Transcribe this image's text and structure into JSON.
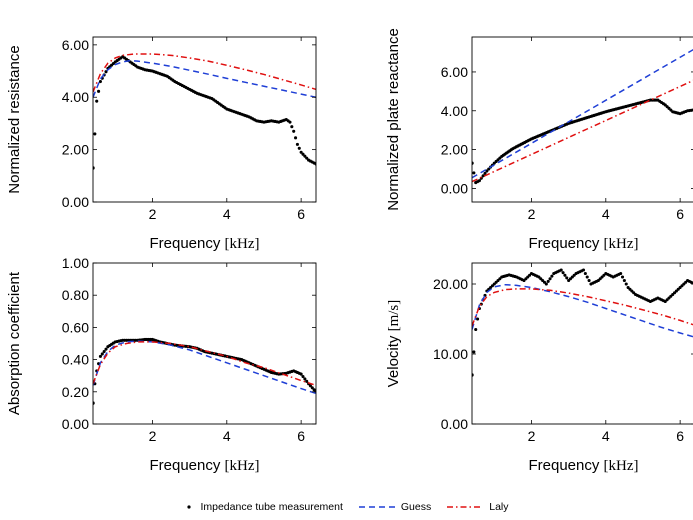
{
  "colors": {
    "measurement": "#000000",
    "guess": "#1f3fd6",
    "laly": "#e01010"
  },
  "legend": {
    "measurement": "Impedance tube measurement",
    "guess": "Guess",
    "laly": "Laly"
  },
  "chart_data": [
    {
      "type": "line",
      "xlabel": "Frequency [kHz]",
      "ylabel": "Normalized resistance",
      "xlim": [
        0.4,
        6.4
      ],
      "ylim": [
        0,
        6.3
      ],
      "xticks": [
        2,
        4,
        6
      ],
      "xtick_labels": [
        "2",
        "4",
        "6"
      ],
      "yticks": [
        0,
        2,
        4,
        6
      ],
      "ytick_labels": [
        "0.00",
        "2.00",
        "4.00",
        "6.00"
      ],
      "grid": false,
      "series": [
        {
          "name": "Impedance tube measurement",
          "style": "dots",
          "x": [
            0.4,
            0.45,
            0.5,
            0.6,
            0.8,
            1.0,
            1.2,
            1.4,
            1.6,
            1.8,
            2.0,
            2.2,
            2.4,
            2.6,
            2.8,
            3.0,
            3.2,
            3.4,
            3.6,
            3.8,
            4.0,
            4.2,
            4.4,
            4.6,
            4.8,
            5.0,
            5.2,
            5.4,
            5.6,
            5.7,
            5.8,
            5.9,
            6.0,
            6.2,
            6.4
          ],
          "y": [
            1.3,
            2.6,
            3.85,
            4.6,
            5.1,
            5.35,
            5.55,
            5.35,
            5.15,
            5.05,
            5.0,
            4.9,
            4.8,
            4.6,
            4.45,
            4.3,
            4.15,
            4.05,
            3.95,
            3.75,
            3.55,
            3.45,
            3.35,
            3.25,
            3.1,
            3.05,
            3.1,
            3.05,
            3.15,
            3.05,
            2.7,
            2.2,
            1.9,
            1.6,
            1.45
          ]
        },
        {
          "name": "Guess",
          "style": "dashed",
          "x": [
            0.4,
            0.6,
            0.8,
            1.0,
            1.2,
            1.4,
            1.6,
            2.0,
            2.5,
            3.0,
            3.5,
            4.0,
            4.5,
            5.0,
            5.5,
            6.0,
            6.4
          ],
          "y": [
            4.0,
            4.7,
            5.05,
            5.25,
            5.35,
            5.4,
            5.38,
            5.3,
            5.18,
            5.03,
            4.88,
            4.72,
            4.57,
            4.42,
            4.27,
            4.12,
            4.0
          ]
        },
        {
          "name": "Laly",
          "style": "dashdot",
          "x": [
            0.4,
            0.6,
            0.8,
            1.0,
            1.2,
            1.5,
            2.0,
            2.5,
            3.0,
            3.5,
            4.0,
            4.5,
            5.0,
            5.5,
            6.0,
            6.4
          ],
          "y": [
            4.2,
            4.9,
            5.3,
            5.5,
            5.6,
            5.65,
            5.65,
            5.6,
            5.5,
            5.38,
            5.22,
            5.05,
            4.87,
            4.67,
            4.47,
            4.3
          ]
        }
      ]
    },
    {
      "type": "line",
      "xlabel": "Frequency [kHz]",
      "ylabel": "Normalized plate reactance",
      "xlim": [
        0.4,
        6.4
      ],
      "ylim": [
        -0.7,
        7.8
      ],
      "xticks": [
        2,
        4,
        6
      ],
      "xtick_labels": [
        "2",
        "4",
        "6"
      ],
      "yticks": [
        0,
        2,
        4,
        6
      ],
      "ytick_labels": [
        "0.00",
        "2.00",
        "4.00",
        "6.00"
      ],
      "grid": false,
      "series": [
        {
          "name": "Impedance tube measurement",
          "style": "dots",
          "x": [
            0.4,
            0.5,
            0.6,
            0.8,
            1.0,
            1.2,
            1.5,
            2.0,
            2.5,
            3.0,
            3.5,
            4.0,
            4.5,
            5.0,
            5.2,
            5.4,
            5.6,
            5.8,
            6.0,
            6.2,
            6.4
          ],
          "y": [
            1.3,
            0.3,
            0.4,
            0.9,
            1.3,
            1.65,
            2.05,
            2.55,
            2.95,
            3.35,
            3.65,
            3.95,
            4.2,
            4.45,
            4.55,
            4.55,
            4.3,
            3.95,
            3.85,
            4.0,
            4.05
          ]
        },
        {
          "name": "Guess",
          "style": "dashed",
          "x": [
            0.4,
            6.4
          ],
          "y": [
            0.55,
            7.2
          ]
        },
        {
          "name": "Laly",
          "style": "dashdot",
          "x": [
            0.4,
            6.4
          ],
          "y": [
            0.35,
            5.6
          ]
        }
      ]
    },
    {
      "type": "line",
      "xlabel": "Frequency [kHz]",
      "ylabel": "Absorption coefficient",
      "xlim": [
        0.4,
        6.4
      ],
      "ylim": [
        0,
        1
      ],
      "xticks": [
        2,
        4,
        6
      ],
      "xtick_labels": [
        "2",
        "4",
        "6"
      ],
      "yticks": [
        0,
        0.2,
        0.4,
        0.6,
        0.8,
        1.0
      ],
      "ytick_labels": [
        "0.00",
        "0.20",
        "0.40",
        "0.60",
        "0.80",
        "1.00"
      ],
      "grid": false,
      "series": [
        {
          "name": "Impedance tube measurement",
          "style": "dots",
          "x": [
            0.4,
            0.45,
            0.5,
            0.6,
            0.8,
            1.0,
            1.2,
            1.4,
            1.6,
            1.8,
            2.0,
            2.2,
            2.4,
            2.6,
            2.8,
            3.0,
            3.2,
            3.4,
            3.6,
            3.8,
            4.0,
            4.2,
            4.4,
            4.6,
            4.8,
            5.0,
            5.2,
            5.4,
            5.6,
            5.8,
            6.0,
            6.2,
            6.4
          ],
          "y": [
            0.13,
            0.25,
            0.33,
            0.42,
            0.48,
            0.51,
            0.52,
            0.52,
            0.52,
            0.525,
            0.525,
            0.51,
            0.5,
            0.49,
            0.485,
            0.48,
            0.47,
            0.45,
            0.44,
            0.43,
            0.42,
            0.41,
            0.4,
            0.38,
            0.36,
            0.34,
            0.32,
            0.31,
            0.315,
            0.33,
            0.31,
            0.25,
            0.2
          ]
        },
        {
          "name": "Guess",
          "style": "dashed",
          "x": [
            0.4,
            0.6,
            0.8,
            1.0,
            1.3,
            1.6,
            2.0,
            2.5,
            3.0,
            3.5,
            4.0,
            4.5,
            5.0,
            5.5,
            6.0,
            6.4
          ],
          "y": [
            0.24,
            0.38,
            0.45,
            0.49,
            0.51,
            0.515,
            0.51,
            0.49,
            0.46,
            0.42,
            0.38,
            0.34,
            0.3,
            0.26,
            0.22,
            0.19
          ]
        },
        {
          "name": "Laly",
          "style": "dashdot",
          "x": [
            0.4,
            0.6,
            0.8,
            1.0,
            1.3,
            1.6,
            2.0,
            2.5,
            3.0,
            3.5,
            4.0,
            4.5,
            5.0,
            5.5,
            6.0,
            6.4
          ],
          "y": [
            0.25,
            0.37,
            0.44,
            0.48,
            0.5,
            0.51,
            0.51,
            0.5,
            0.48,
            0.45,
            0.42,
            0.38,
            0.35,
            0.31,
            0.27,
            0.24
          ]
        }
      ]
    },
    {
      "type": "line",
      "xlabel": "Frequency [kHz]",
      "ylabel": "Velocity [m/s]",
      "xlim": [
        0.4,
        6.4
      ],
      "ylim": [
        0,
        23
      ],
      "xticks": [
        2,
        4,
        6
      ],
      "xtick_labels": [
        "2",
        "4",
        "6"
      ],
      "yticks": [
        0,
        10,
        20
      ],
      "ytick_labels": [
        "0.00",
        "10.00",
        "20.00"
      ],
      "grid": false,
      "series": [
        {
          "name": "Impedance tube measurement",
          "style": "dots",
          "x": [
            0.4,
            0.45,
            0.5,
            0.6,
            0.8,
            1.0,
            1.2,
            1.4,
            1.6,
            1.8,
            2.0,
            2.2,
            2.4,
            2.6,
            2.8,
            3.0,
            3.2,
            3.4,
            3.6,
            3.8,
            4.0,
            4.2,
            4.4,
            4.6,
            4.8,
            5.0,
            5.2,
            5.4,
            5.6,
            5.8,
            6.0,
            6.2,
            6.4
          ],
          "y": [
            7.0,
            10.3,
            13.5,
            16.5,
            19.0,
            20.0,
            21.0,
            21.3,
            21.0,
            20.5,
            21.5,
            21.0,
            20.0,
            21.5,
            22.0,
            20.5,
            21.5,
            22.0,
            20.0,
            20.5,
            21.5,
            21.0,
            21.5,
            19.5,
            18.5,
            18.0,
            17.5,
            18.0,
            17.5,
            18.5,
            19.5,
            20.5,
            20.0
          ]
        },
        {
          "name": "Guess",
          "style": "dashed",
          "x": [
            0.4,
            0.6,
            0.8,
            1.0,
            1.3,
            1.6,
            2.0,
            2.5,
            3.0,
            3.5,
            4.0,
            4.5,
            5.0,
            5.5,
            6.0,
            6.4
          ],
          "y": [
            13.5,
            17.0,
            18.8,
            19.6,
            19.9,
            19.8,
            19.5,
            18.9,
            18.2,
            17.4,
            16.5,
            15.6,
            14.7,
            13.8,
            13.0,
            12.4
          ]
        },
        {
          "name": "Laly",
          "style": "dashdot",
          "x": [
            0.4,
            0.6,
            0.8,
            1.0,
            1.3,
            1.6,
            2.0,
            2.5,
            3.0,
            3.5,
            4.0,
            4.5,
            5.0,
            5.5,
            6.0,
            6.4
          ],
          "y": [
            14.0,
            16.8,
            18.2,
            18.8,
            19.2,
            19.3,
            19.3,
            19.1,
            18.7,
            18.2,
            17.6,
            17.0,
            16.3,
            15.6,
            14.8,
            14.1
          ]
        }
      ]
    }
  ]
}
